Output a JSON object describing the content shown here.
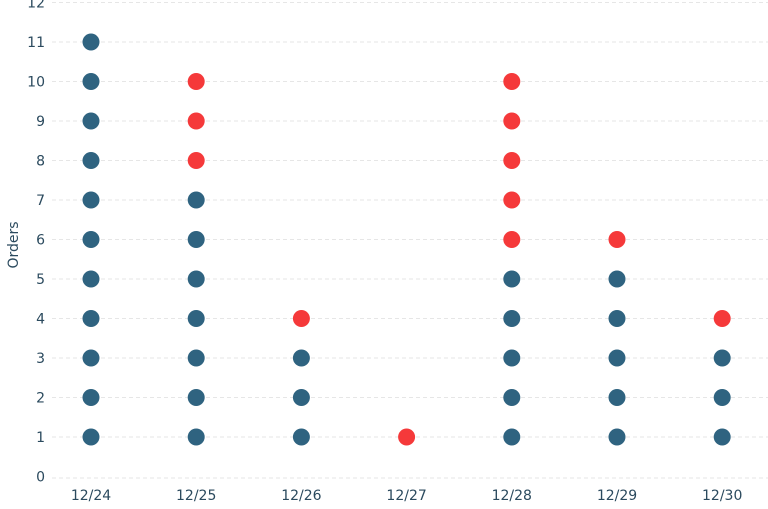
{
  "chart_data": {
    "type": "scatter",
    "subtype": "dot-strip (stacked unit dots per day)",
    "title": "",
    "xlabel": "",
    "ylabel": "Orders",
    "categories": [
      "12/24",
      "12/25",
      "12/26",
      "12/27",
      "12/28",
      "12/29",
      "12/30"
    ],
    "yticks": [
      0,
      1,
      2,
      3,
      4,
      5,
      6,
      7,
      8,
      9,
      10,
      11,
      12
    ],
    "ylim": [
      0,
      12
    ],
    "grid": "horizontal dashed",
    "colors": {
      "base": "#2f6380",
      "highlight": "#f5393a"
    },
    "series": [
      {
        "name": "Orders (blue)",
        "color": "#2f6380",
        "counts": [
          11,
          7,
          3,
          0,
          5,
          5,
          3
        ]
      },
      {
        "name": "Orders (red)",
        "color": "#f5393a",
        "counts": [
          0,
          3,
          1,
          1,
          5,
          1,
          1
        ]
      }
    ],
    "totals": [
      11,
      10,
      4,
      1,
      10,
      6,
      4
    ]
  }
}
